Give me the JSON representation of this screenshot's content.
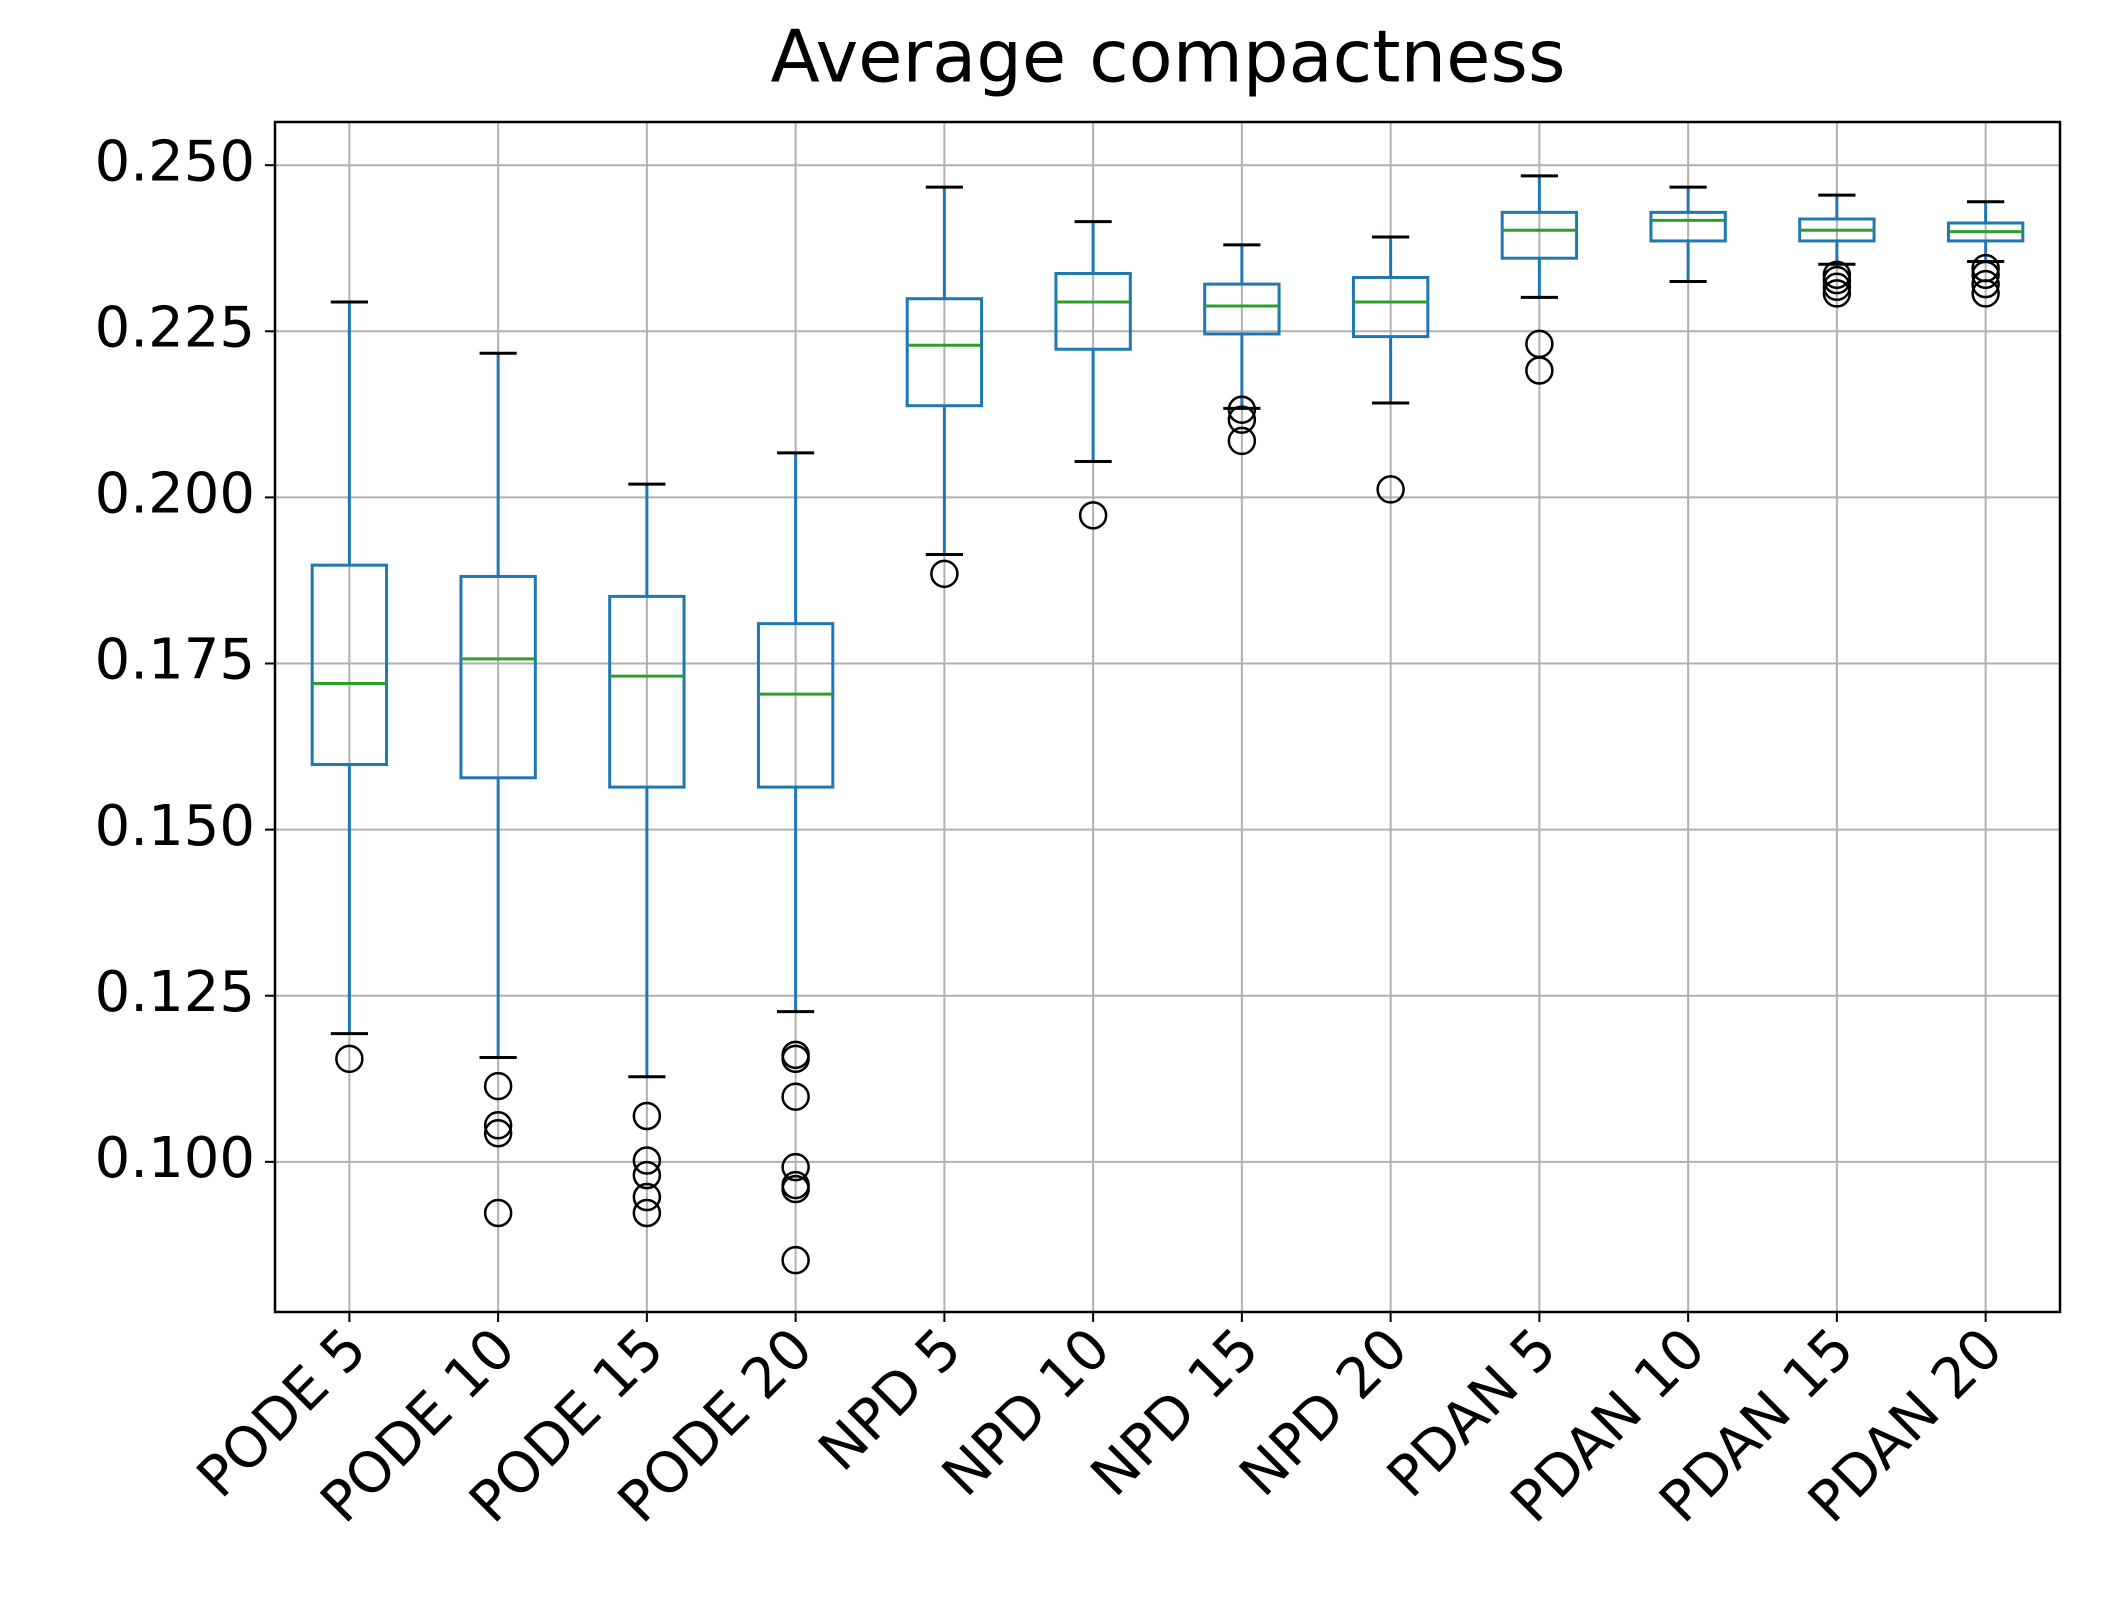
{
  "chart_data": {
    "type": "box",
    "title": "Average compactness",
    "categories": [
      "PODE 5",
      "PODE 10",
      "PODE 15",
      "PODE 20",
      "NPD 5",
      "NPD 10",
      "NPD 15",
      "NPD 20",
      "PDAN 5",
      "PDAN 10",
      "PDAN 15",
      "PDAN 20"
    ],
    "boxes": [
      {
        "whislo": 0.1193,
        "q1": 0.1598,
        "med": 0.172,
        "q3": 0.1898,
        "whishi": 0.2294,
        "fliers": [
          0.1155
        ]
      },
      {
        "whislo": 0.1157,
        "q1": 0.1578,
        "med": 0.1757,
        "q3": 0.1881,
        "whishi": 0.2217,
        "fliers": [
          0.1114,
          0.1055,
          0.1043,
          0.0923
        ]
      },
      {
        "whislo": 0.1128,
        "q1": 0.1564,
        "med": 0.1731,
        "q3": 0.1851,
        "whishi": 0.202,
        "fliers": [
          0.1069,
          0.1002,
          0.098,
          0.0947,
          0.0923
        ]
      },
      {
        "whislo": 0.1226,
        "q1": 0.1564,
        "med": 0.1704,
        "q3": 0.181,
        "whishi": 0.2067,
        "fliers": [
          0.1161,
          0.1155,
          0.1098,
          0.0992,
          0.0965,
          0.0959,
          0.0852
        ]
      },
      {
        "whislo": 0.1914,
        "q1": 0.2138,
        "med": 0.2229,
        "q3": 0.2299,
        "whishi": 0.2467,
        "fliers": [
          0.1885
        ]
      },
      {
        "whislo": 0.2054,
        "q1": 0.2223,
        "med": 0.2294,
        "q3": 0.2337,
        "whishi": 0.2415,
        "fliers": [
          0.1973
        ]
      },
      {
        "whislo": 0.2134,
        "q1": 0.2246,
        "med": 0.2288,
        "q3": 0.2321,
        "whishi": 0.238,
        "fliers": [
          0.2132,
          0.2117,
          0.2085
        ]
      },
      {
        "whislo": 0.2142,
        "q1": 0.2242,
        "med": 0.2294,
        "q3": 0.2331,
        "whishi": 0.2392,
        "fliers": [
          0.2012
        ]
      },
      {
        "whislo": 0.2301,
        "q1": 0.236,
        "med": 0.2402,
        "q3": 0.2429,
        "whishi": 0.2484,
        "fliers": [
          0.2231,
          0.2191
        ]
      },
      {
        "whislo": 0.2325,
        "q1": 0.2386,
        "med": 0.2417,
        "q3": 0.2429,
        "whishi": 0.2467,
        "fliers": []
      },
      {
        "whislo": 0.2351,
        "q1": 0.2386,
        "med": 0.2402,
        "q3": 0.2419,
        "whishi": 0.2455,
        "fliers": [
          0.2335,
          0.2327,
          0.2317,
          0.2307
        ]
      },
      {
        "whislo": 0.2355,
        "q1": 0.2386,
        "med": 0.24,
        "q3": 0.2413,
        "whishi": 0.2445,
        "fliers": [
          0.2345,
          0.2335,
          0.2321,
          0.2307
        ]
      }
    ],
    "box_color": "#1f77b4",
    "median_color": "#2ca02c",
    "cap_color": "#000000",
    "flier_color": "#000000",
    "ylim": [
      0.0774,
      0.2565
    ],
    "yticks": [
      {
        "value": 0.1,
        "label": "0.100"
      },
      0.125,
      {
        "value": 0.15,
        "label": "0.150"
      },
      0.175,
      {
        "value": 0.2,
        "label": "0.200"
      },
      0.225,
      {
        "value": 0.25,
        "label": "0.250"
      }
    ],
    "grid": true
  }
}
